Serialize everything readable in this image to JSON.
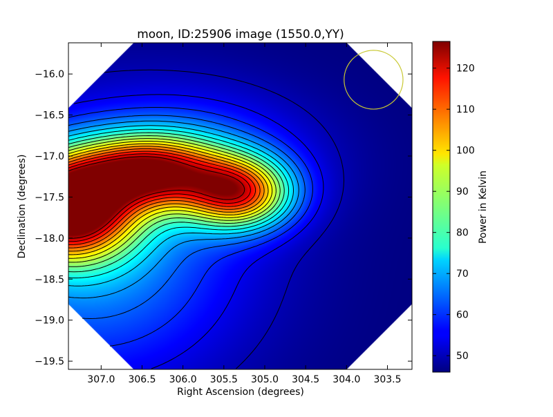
{
  "chart_data": {
    "type": "heatmap",
    "title": "moon, ID:25906 image (1550.0,YY)",
    "xlabel": "Right Ascension (degrees)",
    "ylabel": "Declination (degrees)",
    "x_reversed": true,
    "xlim": [
      307.4,
      303.2
    ],
    "ylim": [
      -19.6,
      -15.62
    ],
    "x_ticks": [
      307.0,
      306.5,
      306.0,
      305.5,
      305.0,
      304.5,
      304.0,
      303.5
    ],
    "x_tick_labels": [
      "307.0",
      "306.5",
      "306.0",
      "305.5",
      "305.0",
      "304.5",
      "304.0",
      "303.5"
    ],
    "y_ticks": [
      -16.0,
      -16.5,
      -17.0,
      -17.5,
      -18.0,
      -18.5,
      -19.0,
      -19.5
    ],
    "y_tick_labels": [
      "−16.0",
      "−16.5",
      "−17.0",
      "−17.5",
      "−18.0",
      "−18.5",
      "−19.0",
      "−19.5"
    ],
    "colorbar": {
      "label": "Power in Kelvin",
      "range": [
        46,
        126.5
      ],
      "ticks": [
        50,
        60,
        70,
        80,
        90,
        100,
        110,
        120
      ],
      "tick_labels": [
        "50",
        "60",
        "70",
        "80",
        "90",
        "100",
        "110",
        "120"
      ],
      "colormap": "jet"
    },
    "sources": [
      {
        "ra": 307.4,
        "dec": -17.63,
        "peak": 126,
        "sigma_ra": 0.55,
        "sigma_dec": 0.42
      },
      {
        "ra": 306.38,
        "dec": -17.18,
        "peak": 104,
        "sigma_ra": 0.6,
        "sigma_dec": 0.3
      },
      {
        "ra": 305.32,
        "dec": -17.45,
        "peak": 102,
        "sigma_ra": 0.45,
        "sigma_dec": 0.3
      }
    ],
    "background_level": 46,
    "marker_circle": {
      "ra": 303.67,
      "dec": -16.07,
      "radius_deg": 0.36,
      "color": "#c8c832"
    }
  }
}
